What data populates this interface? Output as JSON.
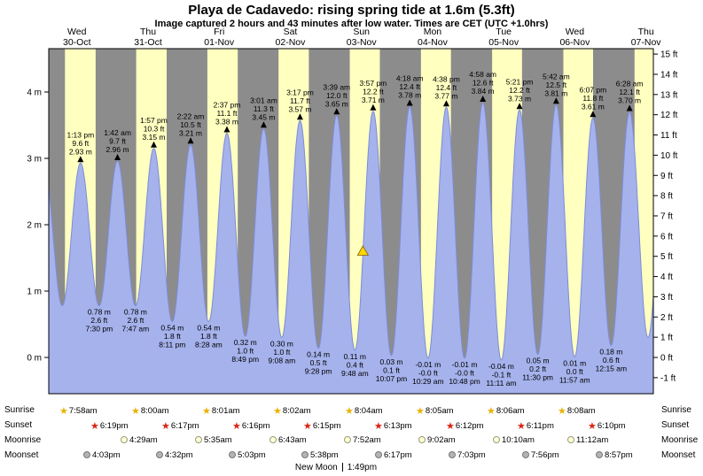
{
  "header": {
    "title": "Playa de Cadavedo: rising spring tide at 1.6m (5.3ft)",
    "subtitle": "Image captured 2 hours and 43 minutes after low water. Times are CET (UTC +1.0hrs)"
  },
  "side_labels": {
    "sunrise": "Sunrise",
    "sunset": "Sunset",
    "moonrise": "Moonrise",
    "moonset": "Moonset"
  },
  "footer": {
    "new_moon_label": "New Moon",
    "new_moon_time": "1:49pm"
  },
  "colors": {
    "day_band": "#ffffc0",
    "night_band": "#8c8c8c",
    "tide_fill": "#a5b2ec",
    "tide_stroke": "#7d8cd8",
    "day_label": "#cc0000",
    "marker": "#000000",
    "current_marker": "#ffd700",
    "current_marker_edge": "#806000",
    "sunrise_star": "#e9b200",
    "sunset_star": "#dd2211",
    "moonrise_fill": "#ffffd6",
    "moonrise_border": "#9a9a7a",
    "moonset_fill": "#b4b4b4",
    "moonset_border": "#787878"
  },
  "chart_data": {
    "type": "area",
    "x_unit": "hours from Wed 30-Oct 00:00",
    "y_axis_left": {
      "unit": "m",
      "ticks": [
        0,
        1,
        2,
        3,
        4
      ]
    },
    "y_axis_right": {
      "unit": "ft",
      "min": -1,
      "max": 15
    },
    "days": [
      {
        "dow": "Wed",
        "date": "30-Oct"
      },
      {
        "dow": "Thu",
        "date": "31-Oct"
      },
      {
        "dow": "Fri",
        "date": "01-Nov"
      },
      {
        "dow": "Sat",
        "date": "02-Nov"
      },
      {
        "dow": "Sun",
        "date": "03-Nov"
      },
      {
        "dow": "Mon",
        "date": "04-Nov"
      },
      {
        "dow": "Tue",
        "date": "05-Nov"
      },
      {
        "dow": "Wed",
        "date": "06-Nov"
      },
      {
        "dow": "Thu",
        "date": "07-Nov"
      }
    ],
    "extremes": [
      {
        "kind": "H",
        "t": 0.9,
        "val": 2.9,
        "pad": true
      },
      {
        "kind": "L",
        "t": 7.05,
        "val": 0.78,
        "pad": true
      },
      {
        "kind": "H",
        "t": 13.217,
        "val": 2.93,
        "lines": [
          "1:13 pm",
          "9.6 ft",
          "2.93 m"
        ]
      },
      {
        "kind": "L",
        "t": 19.5,
        "val": 0.78,
        "lines": [
          "0.78 m",
          "2.6 ft",
          "7:30 pm"
        ]
      },
      {
        "kind": "H",
        "t": 25.7,
        "val": 2.96,
        "lines": [
          "1:42 am",
          "9.7 ft",
          "2.96 m"
        ]
      },
      {
        "kind": "L",
        "t": 31.783,
        "val": 0.78,
        "lines": [
          "0.78 m",
          "2.6 ft",
          "7:47 am"
        ]
      },
      {
        "kind": "H",
        "t": 37.95,
        "val": 3.15,
        "lines": [
          "1:57 pm",
          "10.3 ft",
          "3.15 m"
        ]
      },
      {
        "kind": "L",
        "t": 44.183,
        "val": 0.54,
        "lines": [
          "0.54 m",
          "1.8 ft",
          "8:11 pm"
        ]
      },
      {
        "kind": "H",
        "t": 50.367,
        "val": 3.21,
        "lines": [
          "2:22 am",
          "10.5 ft",
          "3.21 m"
        ]
      },
      {
        "kind": "L",
        "t": 56.467,
        "val": 0.54,
        "lines": [
          "0.54 m",
          "1.8 ft",
          "8:28 am"
        ]
      },
      {
        "kind": "H",
        "t": 62.617,
        "val": 3.38,
        "lines": [
          "2:37 pm",
          "11.1 ft",
          "3.38 m"
        ]
      },
      {
        "kind": "L",
        "t": 68.817,
        "val": 0.32,
        "lines": [
          "0.32 m",
          "1.0 ft",
          "8:49 pm"
        ]
      },
      {
        "kind": "H",
        "t": 75.017,
        "val": 3.45,
        "lines": [
          "3:01 am",
          "11.3 ft",
          "3.45 m"
        ]
      },
      {
        "kind": "L",
        "t": 81.133,
        "val": 0.3,
        "lines": [
          "0.30 m",
          "1.0 ft",
          "9:08 am"
        ]
      },
      {
        "kind": "H",
        "t": 87.283,
        "val": 3.57,
        "lines": [
          "3:17 pm",
          "11.7 ft",
          "3.57 m"
        ]
      },
      {
        "kind": "L",
        "t": 93.467,
        "val": 0.14,
        "lines": [
          "0.14 m",
          "0.5 ft",
          "9:28 pm"
        ]
      },
      {
        "kind": "H",
        "t": 99.65,
        "val": 3.65,
        "lines": [
          "3:39 am",
          "12.0 ft",
          "3.65 m"
        ]
      },
      {
        "kind": "L",
        "t": 105.8,
        "val": 0.11,
        "lines": [
          "0.11 m",
          "0.4 ft",
          "9:48 am"
        ]
      },
      {
        "kind": "H",
        "t": 111.95,
        "val": 3.71,
        "lines": [
          "3:57 pm",
          "12.2 ft",
          "3.71 m"
        ]
      },
      {
        "kind": "L",
        "t": 118.117,
        "val": 0.03,
        "lines": [
          "0.03 m",
          "0.1 ft",
          "10:07 pm"
        ]
      },
      {
        "kind": "H",
        "t": 124.3,
        "val": 3.78,
        "lines": [
          "4:18 am",
          "12.4 ft",
          "3.78 m"
        ]
      },
      {
        "kind": "L",
        "t": 130.483,
        "val": -0.01,
        "lines": [
          "-0.01 m",
          "-0.0 ft",
          "10:29 am"
        ]
      },
      {
        "kind": "H",
        "t": 136.633,
        "val": 3.77,
        "lines": [
          "4:38 pm",
          "12.4 ft",
          "3.77 m"
        ]
      },
      {
        "kind": "L",
        "t": 142.8,
        "val": -0.01,
        "lines": [
          "-0.01 m",
          "-0.0 ft",
          "10:48 pm"
        ]
      },
      {
        "kind": "H",
        "t": 148.967,
        "val": 3.84,
        "lines": [
          "4:58 am",
          "12.6 ft",
          "3.84 m"
        ]
      },
      {
        "kind": "L",
        "t": 155.183,
        "val": -0.04,
        "lines": [
          "-0.04 m",
          "-0.1 ft",
          "11:11 am"
        ]
      },
      {
        "kind": "H",
        "t": 161.35,
        "val": 3.73,
        "lines": [
          "5:21 pm",
          "12.2 ft",
          "3.73 m"
        ]
      },
      {
        "kind": "L",
        "t": 167.5,
        "val": 0.05,
        "lines": [
          "0.05 m",
          "0.2 ft",
          "11:30 pm"
        ]
      },
      {
        "kind": "H",
        "t": 173.7,
        "val": 3.81,
        "lines": [
          "5:42 am",
          "12.5 ft",
          "3.81 m"
        ]
      },
      {
        "kind": "L",
        "t": 179.95,
        "val": 0.01,
        "lines": [
          "0.01 m",
          "0.0 ft",
          "11:57 am"
        ]
      },
      {
        "kind": "H",
        "t": 186.117,
        "val": 3.61,
        "lines": [
          "6:07 pm",
          "11.8 ft",
          "3.61 m"
        ]
      },
      {
        "kind": "L",
        "t": 192.25,
        "val": 0.18,
        "lines": [
          "0.18 m",
          "0.6 ft",
          "12:15 am"
        ]
      },
      {
        "kind": "H",
        "t": 198.467,
        "val": 3.7,
        "lines": [
          "6:28 am",
          "12.1 ft",
          "3.70 m"
        ]
      },
      {
        "kind": "L",
        "t": 204.7,
        "val": 0.3,
        "pad": true
      },
      {
        "kind": "H",
        "t": 210.9,
        "val": 3.5,
        "pad": true
      }
    ],
    "current_level": {
      "m": 1.6,
      "ft": 5.3,
      "t_hours": 108.5,
      "state": "rising"
    },
    "sun_moon_rows": {
      "sunrise": [
        {
          "d": 0,
          "t": 7.967,
          "label": "7:58am"
        },
        {
          "d": 1,
          "t": 8.0,
          "label": "8:00am"
        },
        {
          "d": 2,
          "t": 8.017,
          "label": "8:01am"
        },
        {
          "d": 3,
          "t": 8.033,
          "label": "8:02am"
        },
        {
          "d": 4,
          "t": 8.067,
          "label": "8:04am"
        },
        {
          "d": 5,
          "t": 8.083,
          "label": "8:05am"
        },
        {
          "d": 6,
          "t": 8.1,
          "label": "8:06am"
        },
        {
          "d": 7,
          "t": 8.133,
          "label": "8:08am"
        }
      ],
      "sunset": [
        {
          "d": 0,
          "t": 18.317,
          "label": "6:19pm"
        },
        {
          "d": 1,
          "t": 18.283,
          "label": "6:17pm"
        },
        {
          "d": 2,
          "t": 18.267,
          "label": "6:16pm"
        },
        {
          "d": 3,
          "t": 18.25,
          "label": "6:15pm"
        },
        {
          "d": 4,
          "t": 18.217,
          "label": "6:13pm"
        },
        {
          "d": 5,
          "t": 18.2,
          "label": "6:12pm"
        },
        {
          "d": 6,
          "t": 18.183,
          "label": "6:11pm"
        },
        {
          "d": 7,
          "t": 18.167,
          "label": "6:10pm"
        }
      ],
      "moonrise": [
        {
          "d": 1,
          "t": 4.483,
          "label": "4:29am"
        },
        {
          "d": 2,
          "t": 5.583,
          "label": "5:35am"
        },
        {
          "d": 3,
          "t": 6.717,
          "label": "6:43am"
        },
        {
          "d": 4,
          "t": 7.867,
          "label": "7:52am"
        },
        {
          "d": 5,
          "t": 9.033,
          "label": "9:02am"
        },
        {
          "d": 6,
          "t": 10.167,
          "label": "10:10am"
        },
        {
          "d": 7,
          "t": 11.2,
          "label": "11:12am"
        }
      ],
      "moonset": [
        {
          "d": 0,
          "t": 16.05,
          "label": "4:03pm"
        },
        {
          "d": 1,
          "t": 16.533,
          "label": "4:32pm"
        },
        {
          "d": 2,
          "t": 17.05,
          "label": "5:03pm"
        },
        {
          "d": 3,
          "t": 17.633,
          "label": "5:38pm"
        },
        {
          "d": 4,
          "t": 18.283,
          "label": "6:17pm"
        },
        {
          "d": 5,
          "t": 19.05,
          "label": "7:03pm"
        },
        {
          "d": 6,
          "t": 19.933,
          "label": "7:56pm"
        },
        {
          "d": 7,
          "t": 20.95,
          "label": "8:57pm"
        }
      ]
    }
  }
}
